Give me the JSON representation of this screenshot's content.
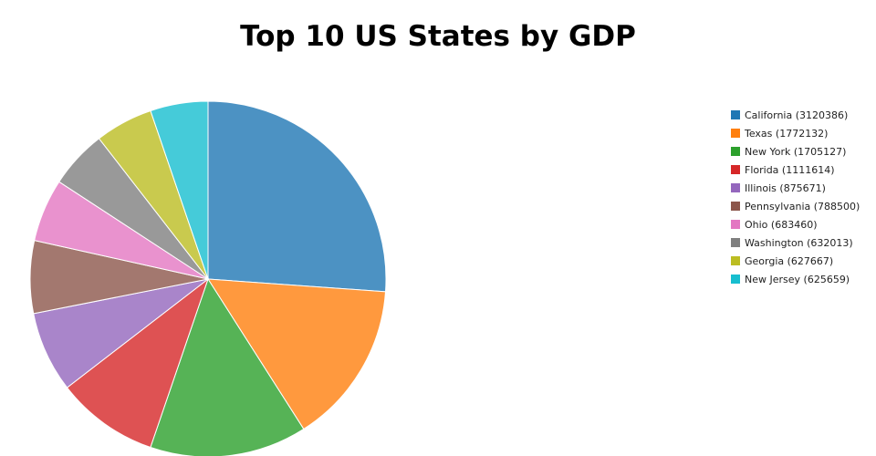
{
  "chart_data": {
    "type": "pie",
    "title": "Top 10 US States by GDP",
    "start_angle": "top",
    "direction": "clockwise",
    "legend_placement": "right",
    "slices": [
      {
        "label": "California",
        "value": 3120386,
        "legend": "California (3120386)",
        "color": "#1f77b4"
      },
      {
        "label": "Texas",
        "value": 1772132,
        "legend": "Texas (1772132)",
        "color": "#ff7f0e"
      },
      {
        "label": "New York",
        "value": 1705127,
        "legend": "New York (1705127)",
        "color": "#2ca02c"
      },
      {
        "label": "Florida",
        "value": 1111614,
        "legend": "Florida (1111614)",
        "color": "#d62728"
      },
      {
        "label": "Illinois",
        "value": 875671,
        "legend": "Illinois (875671)",
        "color": "#9467bd"
      },
      {
        "label": "Pennsylvania",
        "value": 788500,
        "legend": "Pennsylvania (788500)",
        "color": "#8c564b"
      },
      {
        "label": "Ohio",
        "value": 683460,
        "legend": "Ohio (683460)",
        "color": "#e377c2"
      },
      {
        "label": "Washington",
        "value": 632013,
        "legend": "Washington (632013)",
        "color": "#7f7f7f"
      },
      {
        "label": "Georgia",
        "value": 627667,
        "legend": "Georgia (627667)",
        "color": "#bcbd22"
      },
      {
        "label": "New Jersey",
        "value": 625659,
        "legend": "New Jersey (625659)",
        "color": "#17becf"
      }
    ]
  }
}
